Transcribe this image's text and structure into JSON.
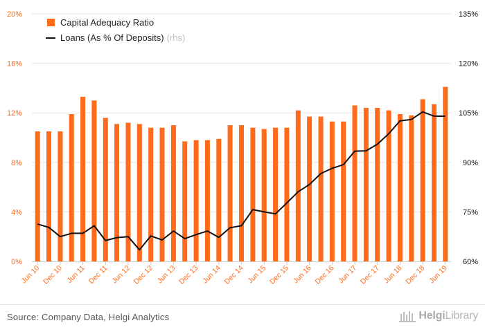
{
  "chart_data": {
    "type": "bar+line",
    "categories": [
      "Jun 10",
      "Sep 10",
      "Dec 10",
      "Mar 11",
      "Jun 11",
      "Sep 11",
      "Dec 11",
      "Mar 12",
      "Jun 12",
      "Sep 12",
      "Dec 12",
      "Mar 13",
      "Jun 13",
      "Sep 13",
      "Dec 13",
      "Mar 14",
      "Jun 14",
      "Sep 14",
      "Dec 14",
      "Mar 15",
      "Jun 15",
      "Sep 15",
      "Dec 15",
      "Mar 16",
      "Jun 16",
      "Sep 16",
      "Dec 16",
      "Mar 17",
      "Jun 17",
      "Sep 17",
      "Dec 17",
      "Mar 18",
      "Jun 18",
      "Sep 18",
      "Dec 18",
      "Mar 19",
      "Jun 19"
    ],
    "x_tick_labels": [
      "Jun 10",
      "Dec 10",
      "Jun 11",
      "Dec 11",
      "Jun 12",
      "Dec 12",
      "Jun 13",
      "Dec 13",
      "Jun 14",
      "Dec 14",
      "Jun 15",
      "Dec 15",
      "Jun 16",
      "Dec 16",
      "Jun 17",
      "Dec 17",
      "Jun 18",
      "Dec 18",
      "Jun 19"
    ],
    "series": [
      {
        "name": "Capital Adequacy Ratio",
        "kind": "bar",
        "axis": "left",
        "color": "#ff6b1a",
        "values": [
          10.5,
          10.5,
          10.5,
          11.9,
          13.3,
          13.0,
          11.6,
          11.1,
          11.2,
          11.1,
          10.8,
          10.8,
          11.0,
          9.7,
          9.8,
          9.8,
          9.9,
          11.0,
          11.0,
          10.8,
          10.7,
          10.8,
          10.8,
          12.2,
          11.7,
          11.7,
          11.3,
          11.3,
          12.6,
          12.4,
          12.4,
          12.2,
          11.9,
          11.8,
          13.1,
          12.7,
          14.1
        ]
      },
      {
        "name": "Loans (As % Of Deposits)",
        "name_suffix": "(rhs)",
        "kind": "line",
        "axis": "right",
        "color": "#111111",
        "values": [
          71.3,
          70.3,
          67.5,
          68.5,
          68.5,
          70.8,
          66.3,
          67.2,
          67.5,
          63.5,
          67.7,
          66.5,
          69.2,
          66.9,
          68.1,
          69.2,
          67.3,
          70.2,
          70.8,
          75.7,
          75.0,
          74.4,
          77.7,
          81.1,
          83.3,
          86.6,
          88.2,
          89.3,
          93.4,
          93.5,
          95.5,
          98.7,
          102.6,
          103.0,
          105.3,
          104.0,
          104.0
        ]
      }
    ],
    "y_left": {
      "range": [
        0,
        20
      ],
      "ticks": [
        "0%",
        "4%",
        "8%",
        "12%",
        "16%",
        "20%"
      ],
      "color": "#ff6b1a"
    },
    "y_right": {
      "range": [
        60,
        135
      ],
      "ticks": [
        "60%",
        "75%",
        "90%",
        "105%",
        "120%",
        "135%"
      ],
      "color": "#111111"
    },
    "grid": true,
    "legend_position": "top-left"
  },
  "footer": {
    "source": "Source: Company Data, Helgi Analytics",
    "brand_bold": "Helgi",
    "brand_rest": "Library"
  }
}
